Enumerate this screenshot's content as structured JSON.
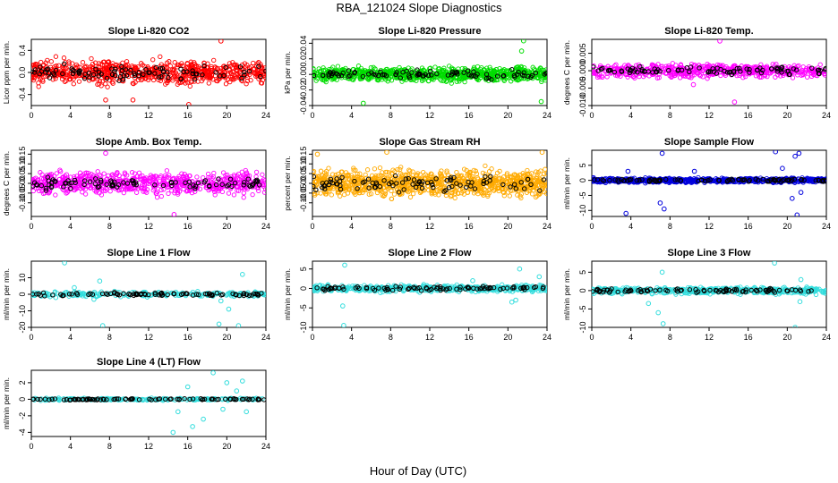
{
  "figure": {
    "title": "RBA_121024  Slope Diagnostics",
    "xlabel": "Hour of Day (UTC)"
  },
  "chart_data": [
    {
      "type": "scatter",
      "title": "Slope Li-820 CO2",
      "ylabel": "Licor ppm per min.",
      "color": "#ff0000",
      "xlim": [
        0,
        24
      ],
      "ylim": [
        -0.6,
        0.6
      ],
      "yticks": [
        -0.4,
        0.0,
        0.4
      ],
      "yticklabels": [
        "-0.4",
        "0.0",
        "0.4"
      ],
      "xticks": [
        0,
        4,
        8,
        12,
        16,
        20,
        24
      ],
      "spread": 0.18,
      "n": 700,
      "outliers": [
        [
          16.1,
          -0.58
        ],
        [
          19.4,
          0.57
        ],
        [
          7.6,
          -0.5
        ],
        [
          10.4,
          -0.5
        ]
      ]
    },
    {
      "type": "scatter",
      "title": "Slope Li-820 Pressure",
      "ylabel": "kPa per min.",
      "color": "#00dd00",
      "xlim": [
        0,
        24
      ],
      "ylim": [
        -0.04,
        0.045
      ],
      "yticks": [
        -0.04,
        -0.02,
        0.0,
        0.02,
        0.04
      ],
      "yticklabels": [
        "-0.04",
        "-0.02",
        "0.00",
        "0.02",
        "0.04"
      ],
      "xticks": [
        0,
        4,
        8,
        12,
        16,
        20,
        24
      ],
      "spread": 0.007,
      "n": 800,
      "outliers": [
        [
          21.6,
          0.043
        ],
        [
          5.2,
          -0.037
        ],
        [
          21.4,
          0.03
        ],
        [
          23.4,
          -0.035
        ]
      ]
    },
    {
      "type": "scatter",
      "title": "Slope Li-820 Temp.",
      "ylabel": "degrees C per min.",
      "color": "#ff00ff",
      "xlim": [
        0,
        24
      ],
      "ylim": [
        -0.01,
        0.009
      ],
      "yticks": [
        -0.01,
        -0.005,
        0.0,
        0.005
      ],
      "yticklabels": [
        "-0.010",
        "-0.005",
        "0.000",
        "0.005"
      ],
      "xticks": [
        0,
        4,
        8,
        12,
        16,
        20,
        24
      ],
      "spread": 0.0015,
      "n": 600,
      "outliers": [
        [
          14.6,
          -0.009
        ],
        [
          13.1,
          0.0085
        ],
        [
          10.4,
          -0.004
        ]
      ]
    },
    {
      "type": "scatter",
      "title": "Slope Amb. Box Temp.",
      "ylabel": "degrees C per min.",
      "color": "#ff00ff",
      "xlim": [
        0,
        24
      ],
      "ylim": [
        -0.17,
        0.17
      ],
      "yticks": [
        -0.1,
        -0.05,
        0.0,
        0.05,
        0.1,
        0.15
      ],
      "yticklabels": [
        "-0.10",
        "-0.05",
        "0.00",
        "0.05",
        "0.10",
        "0.15"
      ],
      "xticks": [
        0,
        4,
        8,
        12,
        16,
        20,
        24
      ],
      "spread": 0.045,
      "n": 650,
      "outliers": [
        [
          14.6,
          -0.16
        ],
        [
          7.6,
          0.155
        ]
      ]
    },
    {
      "type": "scatter",
      "title": "Slope Gas Stream RH",
      "ylabel": "percent per min.",
      "color": "#ffaa00",
      "xlim": [
        0,
        24
      ],
      "ylim": [
        -0.17,
        0.17
      ],
      "yticks": [
        -0.1,
        -0.05,
        0.0,
        0.05,
        0.1,
        0.15
      ],
      "yticklabels": [
        "-0.10",
        "-0.05",
        "0.00",
        "0.05",
        "0.10",
        "0.15"
      ],
      "xticks": [
        0,
        4,
        8,
        12,
        16,
        20,
        24
      ],
      "spread": 0.055,
      "n": 900,
      "outliers": [
        [
          0.5,
          0.15
        ],
        [
          7.6,
          0.16
        ],
        [
          23.5,
          0.16
        ]
      ]
    },
    {
      "type": "scatter",
      "title": "Slope Sample Flow",
      "ylabel": "ml/min per min.",
      "color": "#0000dd",
      "xlim": [
        0,
        24
      ],
      "ylim": [
        -12,
        10
      ],
      "yticks": [
        -10,
        -5,
        0,
        5
      ],
      "yticklabels": [
        "-10",
        "-5",
        "0",
        "5"
      ],
      "xticks": [
        0,
        4,
        8,
        12,
        16,
        20,
        24
      ],
      "spread": 0.6,
      "n": 700,
      "outliers": [
        [
          3.5,
          -11
        ],
        [
          3.7,
          3
        ],
        [
          7.2,
          9
        ],
        [
          7,
          -7.5
        ],
        [
          7.4,
          -9.5
        ],
        [
          10.5,
          3
        ],
        [
          18.8,
          9.5
        ],
        [
          20.8,
          8
        ],
        [
          21.2,
          9
        ],
        [
          20.5,
          -6
        ],
        [
          21,
          -11.5
        ],
        [
          21.4,
          -4
        ],
        [
          19.5,
          4
        ]
      ]
    },
    {
      "type": "scatter",
      "title": "Slope Line 1 Flow",
      "ylabel": "ml/min per min.",
      "color": "#33dddd",
      "xlim": [
        0,
        24
      ],
      "ylim": [
        -20,
        20
      ],
      "yticks": [
        -20,
        -10,
        0,
        10
      ],
      "yticklabels": [
        "-20",
        "-10",
        "0",
        "10"
      ],
      "xticks": [
        0,
        4,
        8,
        12,
        16,
        20,
        24
      ],
      "spread": 1.2,
      "n": 260,
      "outliers": [
        [
          3.4,
          19
        ],
        [
          7,
          8
        ],
        [
          7.3,
          -19
        ],
        [
          19.4,
          -4
        ],
        [
          21.6,
          12
        ],
        [
          20.2,
          -9
        ],
        [
          21.2,
          -19
        ],
        [
          19.2,
          -18
        ],
        [
          2.5,
          -2
        ],
        [
          4.4,
          4
        ],
        [
          6.4,
          -3
        ]
      ]
    },
    {
      "type": "scatter",
      "title": "Slope Line 2 Flow",
      "ylabel": "ml/min per min.",
      "color": "#33dddd",
      "xlim": [
        0,
        24
      ],
      "ylim": [
        -10,
        7
      ],
      "yticks": [
        -10,
        -5,
        0,
        5
      ],
      "yticklabels": [
        "-10",
        "-5",
        "0",
        "5"
      ],
      "xticks": [
        0,
        4,
        8,
        12,
        16,
        20,
        24
      ],
      "spread": 0.7,
      "n": 520,
      "outliers": [
        [
          3.3,
          6
        ],
        [
          3.1,
          -4.5
        ],
        [
          3.2,
          -9.5
        ],
        [
          21.2,
          5
        ],
        [
          20.4,
          -3.5
        ],
        [
          20.8,
          -3
        ],
        [
          16.4,
          2
        ],
        [
          23.2,
          3
        ]
      ]
    },
    {
      "type": "scatter",
      "title": "Slope Line 3 Flow",
      "ylabel": "ml/min per min.",
      "color": "#33dddd",
      "xlim": [
        0,
        24
      ],
      "ylim": [
        -10,
        8
      ],
      "yticks": [
        -10,
        -5,
        0,
        5
      ],
      "yticklabels": [
        "-10",
        "-5",
        "0",
        "5"
      ],
      "xticks": [
        0,
        4,
        8,
        12,
        16,
        20,
        24
      ],
      "spread": 0.7,
      "n": 520,
      "outliers": [
        [
          7.2,
          5
        ],
        [
          7.3,
          -9
        ],
        [
          6.8,
          -6
        ],
        [
          18.7,
          7.5
        ],
        [
          20.8,
          -10
        ],
        [
          21.3,
          -3
        ],
        [
          5.8,
          -3.5
        ],
        [
          21.4,
          3
        ]
      ]
    },
    {
      "type": "scatter",
      "title": "Slope Line 4 (LT) Flow",
      "ylabel": "ml/min per min.",
      "color": "#33dddd",
      "xlim": [
        0,
        24
      ],
      "ylim": [
        -4.5,
        3.5
      ],
      "yticks": [
        -4,
        -2,
        0,
        2
      ],
      "yticklabels": [
        "-4",
        "-2",
        "0",
        "2"
      ],
      "xticks": [
        0,
        4,
        8,
        12,
        16,
        20,
        24
      ],
      "spread": 0.12,
      "n": 240,
      "outliers": [
        [
          14.5,
          -4
        ],
        [
          16.5,
          -3.3
        ],
        [
          17.6,
          -2.4
        ],
        [
          18.6,
          3.2
        ],
        [
          19.6,
          -1.2
        ],
        [
          20,
          2
        ],
        [
          21,
          1
        ],
        [
          22,
          -1.5
        ],
        [
          15,
          -1.5
        ],
        [
          16,
          1.5
        ],
        [
          21.6,
          2.2
        ]
      ]
    }
  ]
}
